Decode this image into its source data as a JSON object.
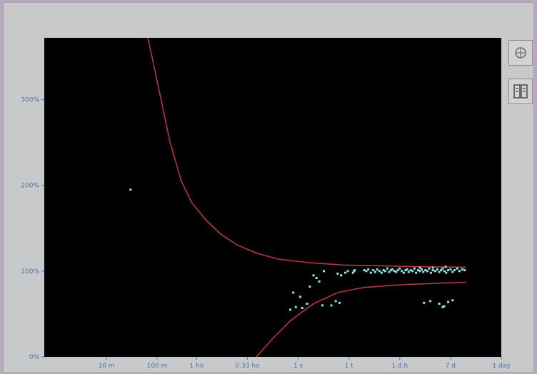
{
  "chart_data": {
    "type": "scatter",
    "x_scale": "log",
    "x_ticks": [
      {
        "label": "10 m",
        "value": 0.167
      },
      {
        "label": "100 m",
        "value": 1.667
      },
      {
        "label": "1 ho",
        "value": 10
      },
      {
        "label": "0.33 ho",
        "value": 100
      },
      {
        "label": "1 s",
        "value": 1000
      },
      {
        "label": "1 t",
        "value": 10000
      },
      {
        "label": "1 d.h",
        "value": 100000
      },
      {
        "label": "7 d",
        "value": 1000000
      },
      {
        "label": "1 day",
        "value": 10000000
      }
    ],
    "y_ticks": [
      {
        "label": "0%",
        "value": 0
      },
      {
        "label": "100%",
        "value": 100
      },
      {
        "label": "200%",
        "value": 200
      },
      {
        "label": "300%",
        "value": 300
      }
    ],
    "ylim": [
      0,
      372
    ],
    "xlim": [
      0.01,
      10000000
    ],
    "grid": false,
    "background": "#000000",
    "axis_color": "#4d6fb0",
    "curve_color": "#b23a3a",
    "points_color": "#8fe3e3",
    "curves": [
      {
        "upper": [
          [
            1.1,
            372
          ],
          [
            2,
            300
          ],
          [
            3,
            250
          ],
          [
            5,
            205
          ],
          [
            8,
            180
          ],
          [
            15,
            160
          ],
          [
            30,
            143
          ],
          [
            60,
            131
          ],
          [
            150,
            121
          ],
          [
            400,
            114
          ],
          [
            1500,
            110
          ],
          [
            8000,
            107
          ],
          [
            50000,
            106
          ],
          [
            300000,
            105
          ],
          [
            2000000,
            104.5
          ]
        ]
      },
      {
        "lower": [
          [
            150,
            0
          ],
          [
            300,
            20
          ],
          [
            700,
            42
          ],
          [
            2000,
            62
          ],
          [
            6000,
            75
          ],
          [
            20000,
            81
          ],
          [
            100000,
            84
          ],
          [
            600000,
            86
          ],
          [
            2000000,
            87
          ]
        ]
      }
    ],
    "points": [
      [
        0.5,
        195
      ],
      [
        700,
        55
      ],
      [
        900,
        58
      ],
      [
        1200,
        57
      ],
      [
        800,
        75
      ],
      [
        1500,
        62
      ],
      [
        1700,
        82
      ],
      [
        2000,
        95
      ],
      [
        2300,
        92
      ],
      [
        2600,
        88
      ],
      [
        1100,
        70
      ],
      [
        3000,
        60
      ],
      [
        3200,
        100
      ],
      [
        4500,
        60
      ],
      [
        5500,
        65
      ],
      [
        6000,
        97
      ],
      [
        6500,
        63
      ],
      [
        7000,
        95
      ],
      [
        8500,
        98
      ],
      [
        9500,
        100
      ],
      [
        12000,
        98
      ],
      [
        12500,
        100
      ],
      [
        13000,
        101
      ],
      [
        20000,
        101
      ],
      [
        22000,
        100
      ],
      [
        24000,
        102
      ],
      [
        27000,
        98
      ],
      [
        30000,
        101
      ],
      [
        33000,
        99
      ],
      [
        36000,
        102
      ],
      [
        40000,
        100
      ],
      [
        44000,
        98
      ],
      [
        48000,
        101
      ],
      [
        52000,
        100
      ],
      [
        57000,
        103
      ],
      [
        62000,
        99
      ],
      [
        67000,
        101
      ],
      [
        72000,
        102
      ],
      [
        78000,
        100
      ],
      [
        85000,
        99
      ],
      [
        92000,
        101
      ],
      [
        100000,
        103
      ],
      [
        110000,
        100
      ],
      [
        120000,
        98
      ],
      [
        130000,
        101
      ],
      [
        140000,
        102
      ],
      [
        150000,
        99
      ],
      [
        165000,
        101
      ],
      [
        180000,
        100
      ],
      [
        195000,
        103
      ],
      [
        210000,
        98
      ],
      [
        230000,
        101
      ],
      [
        250000,
        100
      ],
      [
        270000,
        102
      ],
      [
        290000,
        99
      ],
      [
        320000,
        101
      ],
      [
        350000,
        100
      ],
      [
        380000,
        103
      ],
      [
        410000,
        98
      ],
      [
        450000,
        101
      ],
      [
        500000,
        100
      ],
      [
        550000,
        102
      ],
      [
        600000,
        99
      ],
      [
        650000,
        101
      ],
      [
        700000,
        103
      ],
      [
        760000,
        100
      ],
      [
        820000,
        98
      ],
      [
        900000,
        101
      ],
      [
        1000000,
        102
      ],
      [
        1100000,
        99
      ],
      [
        1200000,
        101
      ],
      [
        1350000,
        103
      ],
      [
        1500000,
        100
      ],
      [
        1700000,
        102
      ],
      [
        1900000,
        101
      ],
      [
        300000,
        63
      ],
      [
        400000,
        65
      ],
      [
        600000,
        62
      ],
      [
        700000,
        58
      ],
      [
        750000,
        59
      ],
      [
        900000,
        64
      ],
      [
        1100000,
        66
      ],
      [
        250000,
        104
      ],
      [
        450000,
        104
      ],
      [
        800000,
        105
      ]
    ]
  },
  "toolbar": {
    "zoom_icon": "zoom-icon",
    "panel_icon": "panel-icon"
  }
}
